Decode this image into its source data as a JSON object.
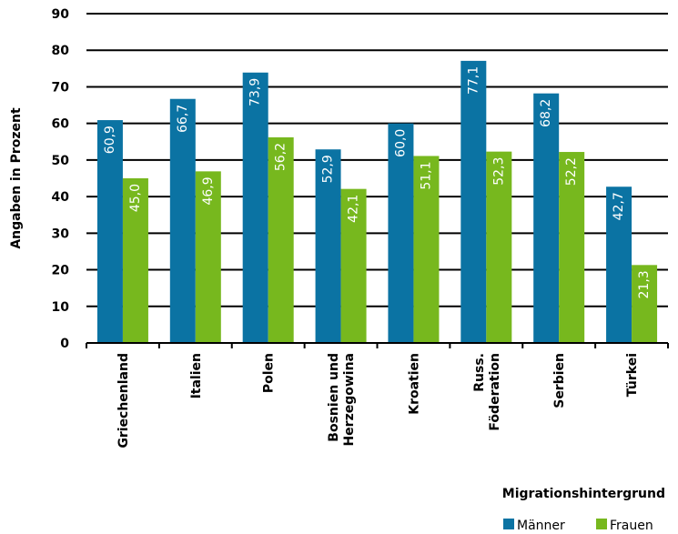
{
  "chart_data": {
    "type": "bar",
    "categories": [
      [
        "Griechenland"
      ],
      [
        "Italien"
      ],
      [
        "Polen"
      ],
      [
        "Bosnien und",
        "Herzegowina"
      ],
      [
        "Kroatien"
      ],
      [
        "Russ.",
        "Föderation"
      ],
      [
        "Serbien"
      ],
      [
        "Türkei"
      ]
    ],
    "series": [
      {
        "name": "Männer",
        "color": "#0b73a3",
        "values": [
          60.9,
          66.7,
          73.9,
          52.9,
          60.0,
          77.1,
          68.2,
          42.7
        ],
        "labels": [
          "60,9",
          "66,7",
          "73,9",
          "52,9",
          "60,0",
          "77,1",
          "68,2",
          "42,7"
        ]
      },
      {
        "name": "Frauen",
        "color": "#77b81e",
        "values": [
          45.0,
          46.9,
          56.2,
          42.1,
          51.1,
          52.3,
          52.2,
          21.3
        ],
        "labels": [
          "45,0",
          "46,9",
          "56,2",
          "42,1",
          "51,1",
          "52,3",
          "52,2",
          "21,3"
        ]
      }
    ],
    "ylabel": "Angaben in Prozent",
    "ylim": [
      0,
      90
    ],
    "yticks": [
      0,
      10,
      20,
      30,
      40,
      50,
      60,
      70,
      80,
      90
    ],
    "grid": true,
    "legend": {
      "title": "Migrationshintergrund",
      "placement": "bottom-right"
    }
  }
}
